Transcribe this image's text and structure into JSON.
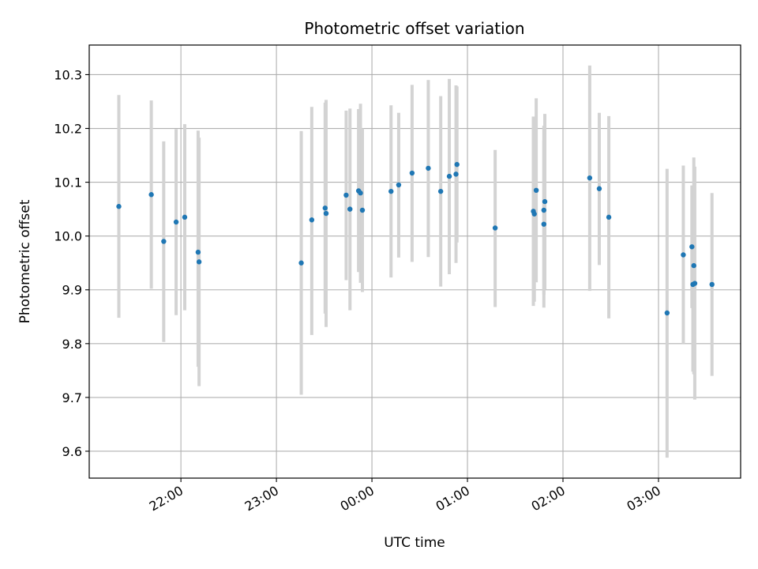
{
  "chart_data": {
    "type": "scatter",
    "title": "Photometric offset variation",
    "xlabel": "UTC time",
    "ylabel": "Photometric offset",
    "x_unit": "hours since 00:00 UTC",
    "xlim": [
      -2.96,
      3.86
    ],
    "ylim": [
      9.55,
      10.355
    ],
    "grid": true,
    "colors": {
      "point": "#1f77b4",
      "errorbar": "#d3d3d3",
      "grid": "#b0b0b0"
    },
    "x_ticks": [
      {
        "value": -2,
        "label": "22:00"
      },
      {
        "value": -1,
        "label": "23:00"
      },
      {
        "value": 0,
        "label": "00:00"
      },
      {
        "value": 1,
        "label": "01:00"
      },
      {
        "value": 2,
        "label": "02:00"
      },
      {
        "value": 3,
        "label": "03:00"
      }
    ],
    "y_ticks": [
      {
        "value": 9.6,
        "label": "9.6"
      },
      {
        "value": 9.7,
        "label": "9.7"
      },
      {
        "value": 9.8,
        "label": "9.8"
      },
      {
        "value": 9.9,
        "label": "9.9"
      },
      {
        "value": 10.0,
        "label": "10.0"
      },
      {
        "value": 10.1,
        "label": "10.1"
      },
      {
        "value": 10.2,
        "label": "10.2"
      },
      {
        "value": 10.3,
        "label": "10.3"
      }
    ],
    "points": [
      {
        "x": -2.65,
        "y": 10.055,
        "ylo": 9.848,
        "yhi": 10.262
      },
      {
        "x": -2.31,
        "y": 10.077,
        "ylo": 9.902,
        "yhi": 10.252
      },
      {
        "x": -2.18,
        "y": 9.99,
        "ylo": 9.803,
        "yhi": 10.176
      },
      {
        "x": -2.05,
        "y": 10.026,
        "ylo": 9.853,
        "yhi": 10.199
      },
      {
        "x": -1.96,
        "y": 10.035,
        "ylo": 9.862,
        "yhi": 10.208
      },
      {
        "x": -1.82,
        "y": 9.97,
        "ylo": 9.757,
        "yhi": 10.196
      },
      {
        "x": -1.81,
        "y": 9.952,
        "ylo": 9.721,
        "yhi": 10.183
      },
      {
        "x": -0.74,
        "y": 9.95,
        "ylo": 9.705,
        "yhi": 10.195
      },
      {
        "x": -0.63,
        "y": 10.03,
        "ylo": 9.816,
        "yhi": 10.24
      },
      {
        "x": -0.49,
        "y": 10.052,
        "ylo": 9.856,
        "yhi": 10.248
      },
      {
        "x": -0.48,
        "y": 10.042,
        "ylo": 9.831,
        "yhi": 10.253
      },
      {
        "x": -0.27,
        "y": 10.076,
        "ylo": 9.918,
        "yhi": 10.233
      },
      {
        "x": -0.23,
        "y": 10.05,
        "ylo": 9.862,
        "yhi": 10.237
      },
      {
        "x": -0.14,
        "y": 10.084,
        "ylo": 9.933,
        "yhi": 10.236
      },
      {
        "x": -0.12,
        "y": 10.08,
        "ylo": 9.913,
        "yhi": 10.246
      },
      {
        "x": -0.1,
        "y": 10.048,
        "ylo": 9.896,
        "yhi": 10.2
      },
      {
        "x": 0.2,
        "y": 10.083,
        "ylo": 9.923,
        "yhi": 10.243
      },
      {
        "x": 0.28,
        "y": 10.095,
        "ylo": 9.96,
        "yhi": 10.229
      },
      {
        "x": 0.42,
        "y": 10.117,
        "ylo": 9.952,
        "yhi": 10.281
      },
      {
        "x": 0.59,
        "y": 10.126,
        "ylo": 9.961,
        "yhi": 10.29
      },
      {
        "x": 0.72,
        "y": 10.083,
        "ylo": 9.906,
        "yhi": 10.26
      },
      {
        "x": 0.81,
        "y": 10.111,
        "ylo": 9.929,
        "yhi": 10.292
      },
      {
        "x": 0.88,
        "y": 10.115,
        "ylo": 9.95,
        "yhi": 10.28
      },
      {
        "x": 0.89,
        "y": 10.133,
        "ylo": 9.988,
        "yhi": 10.278
      },
      {
        "x": 1.29,
        "y": 10.015,
        "ylo": 9.868,
        "yhi": 10.16
      },
      {
        "x": 1.69,
        "y": 10.046,
        "ylo": 9.87,
        "yhi": 10.222
      },
      {
        "x": 1.7,
        "y": 10.041,
        "ylo": 9.878,
        "yhi": 10.204
      },
      {
        "x": 1.72,
        "y": 10.085,
        "ylo": 9.914,
        "yhi": 10.256
      },
      {
        "x": 1.8,
        "y": 10.048,
        "ylo": 9.891,
        "yhi": 10.205
      },
      {
        "x": 1.8,
        "y": 10.022,
        "ylo": 9.867,
        "yhi": 10.177
      },
      {
        "x": 1.81,
        "y": 10.064,
        "ylo": 9.901,
        "yhi": 10.227
      },
      {
        "x": 2.28,
        "y": 10.108,
        "ylo": 9.898,
        "yhi": 10.317
      },
      {
        "x": 2.38,
        "y": 10.088,
        "ylo": 9.946,
        "yhi": 10.229
      },
      {
        "x": 2.48,
        "y": 10.035,
        "ylo": 9.847,
        "yhi": 10.223
      },
      {
        "x": 3.09,
        "y": 9.857,
        "ylo": 9.588,
        "yhi": 10.125
      },
      {
        "x": 3.26,
        "y": 9.965,
        "ylo": 9.8,
        "yhi": 10.131
      },
      {
        "x": 3.35,
        "y": 9.98,
        "ylo": 9.866,
        "yhi": 10.094
      },
      {
        "x": 3.36,
        "y": 9.91,
        "ylo": 9.748,
        "yhi": 10.072
      },
      {
        "x": 3.37,
        "y": 9.945,
        "ylo": 9.743,
        "yhi": 10.146
      },
      {
        "x": 3.38,
        "y": 9.912,
        "ylo": 9.696,
        "yhi": 10.129
      },
      {
        "x": 3.56,
        "y": 9.91,
        "ylo": 9.74,
        "yhi": 10.08
      }
    ]
  }
}
